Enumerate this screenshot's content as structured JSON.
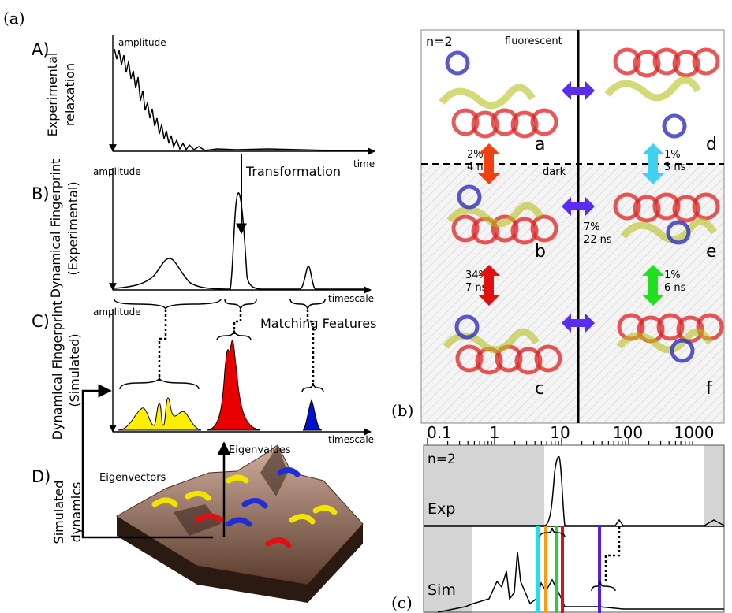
{
  "figure_a": {
    "label": "(a)",
    "panel_a": {
      "label": "A)",
      "y_axis": "amplitude",
      "x_axis": "time",
      "side_label": [
        "Experimental",
        "relaxation"
      ]
    },
    "transformation": "Transformation",
    "panel_b": {
      "label": "B)",
      "y_axis": "amplitude",
      "x_axis": "timescale",
      "side_label": [
        "Dynamical Fingerprint",
        "(Experimental)"
      ]
    },
    "matching": "Matching Features",
    "panel_c": {
      "label": "C)",
      "y_axis": "amplitude",
      "x_axis": "timescale",
      "side_label": [
        "Dynamical Fingerprint",
        "(Simulated)"
      ]
    },
    "eigenvalues": "Eigenvalues",
    "eigenvectors": "Eigenvectors",
    "panel_d": {
      "label": "D)",
      "side_label": [
        "Simulated",
        "dynamics"
      ]
    }
  },
  "figure_b": {
    "label": "(b)",
    "n": "n=2",
    "fluorescent": "fluorescent",
    "dark": "dark",
    "states": [
      "a",
      "b",
      "c",
      "d",
      "e",
      "f"
    ],
    "transitions": [
      [
        "2%",
        "4 ns"
      ],
      [
        "1%",
        "3 ns"
      ],
      [
        "7%",
        "22 ns"
      ],
      [
        "34%",
        "7 ns"
      ],
      [
        "1%",
        "6 ns"
      ]
    ]
  },
  "figure_c": {
    "label": "(c)",
    "axis_labels": [
      "0.1",
      "1",
      "10",
      "100",
      "1000"
    ],
    "n": "n=2",
    "rows": [
      "Exp",
      "Sim"
    ]
  }
}
